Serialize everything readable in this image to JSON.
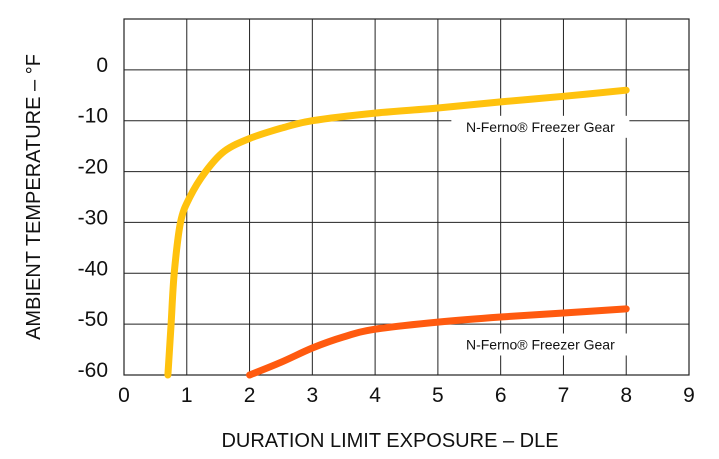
{
  "chart_data": {
    "type": "line",
    "xlabel": "DURATION LIMIT EXPOSURE – DLE",
    "ylabel": "AMBIENT TEMPERATURE – °F",
    "xlim": [
      0,
      9
    ],
    "ylim": [
      -60,
      10
    ],
    "x_ticks": [
      "0",
      "1",
      "2",
      "3",
      "4",
      "5",
      "6",
      "7",
      "8",
      "9"
    ],
    "y_ticks": [
      "0",
      "-10",
      "-20",
      "-30",
      "-40",
      "-50",
      "-60"
    ],
    "grid": true,
    "series": [
      {
        "name": "N-Ferno® Freezer Gear",
        "color": "#FFC20E",
        "points": [
          [
            0.7,
            -60
          ],
          [
            0.75,
            -50
          ],
          [
            0.8,
            -40
          ],
          [
            0.9,
            -30
          ],
          [
            1.05,
            -25
          ],
          [
            1.3,
            -20
          ],
          [
            1.6,
            -16
          ],
          [
            2,
            -13.5
          ],
          [
            2.5,
            -11.5
          ],
          [
            3,
            -10
          ],
          [
            4,
            -8.5
          ],
          [
            5,
            -7.5
          ],
          [
            6,
            -6.3
          ],
          [
            7,
            -5.2
          ],
          [
            8,
            -4
          ]
        ]
      },
      {
        "name": "N-Ferno® Freezer Gear",
        "color": "#FF5A0F",
        "points": [
          [
            2,
            -60
          ],
          [
            2.5,
            -57.5
          ],
          [
            3,
            -54.7
          ],
          [
            3.5,
            -52.5
          ],
          [
            4,
            -51
          ],
          [
            5,
            -49.6
          ],
          [
            6,
            -48.6
          ],
          [
            7,
            -47.8
          ],
          [
            8,
            -47
          ]
        ]
      }
    ]
  }
}
